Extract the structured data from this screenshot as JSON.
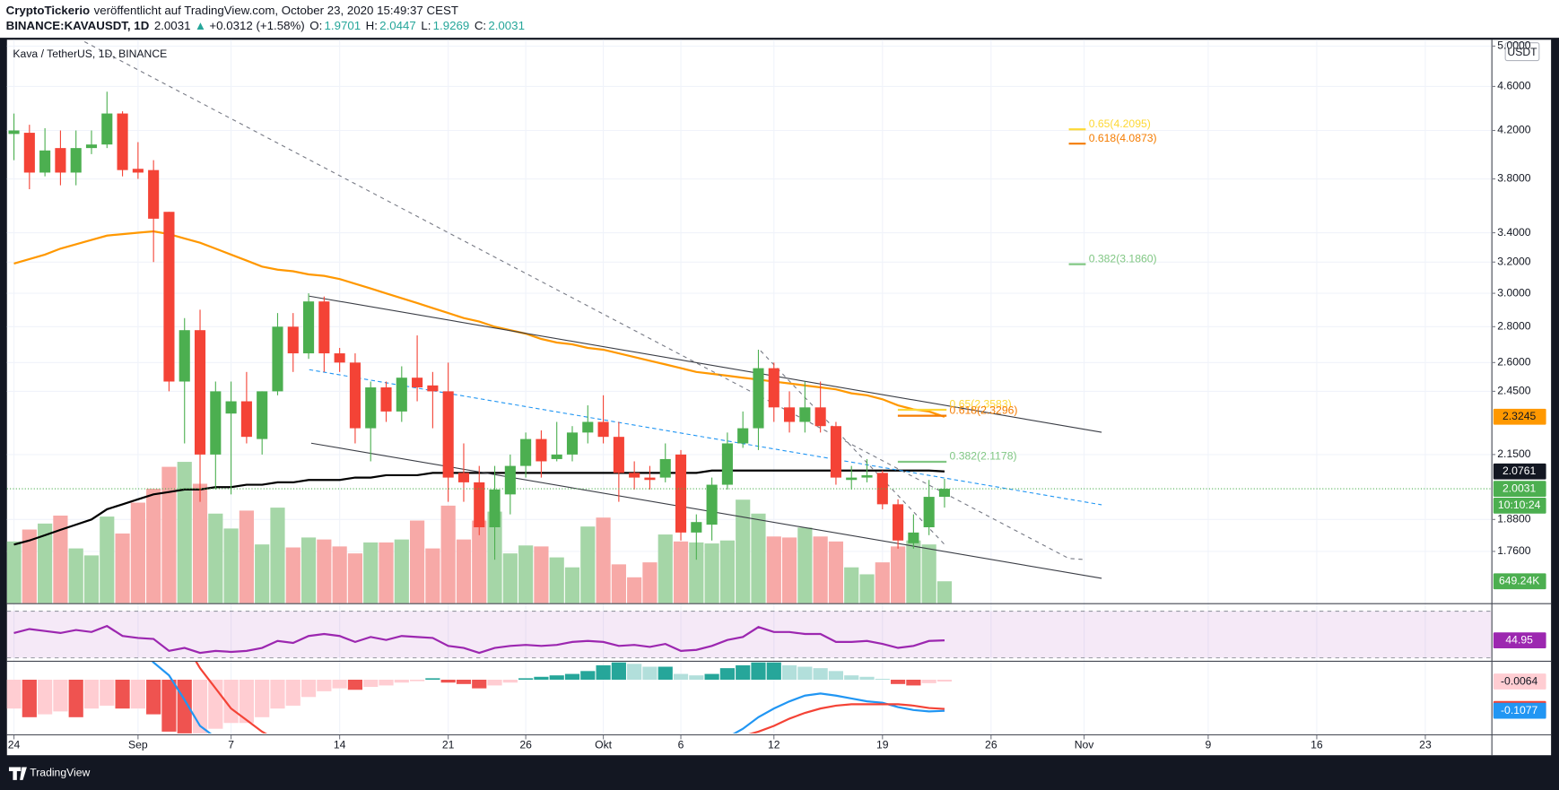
{
  "header": {
    "publisher": "CryptoTickerio",
    "published": "veröffentlicht auf TradingView.com, October 23, 2020 15:49:37 CEST",
    "symbol": "BINANCE:KAVAUSDT, 1D",
    "last": "2.0031",
    "arrow": "▲",
    "change": "+0.0312 (+1.58%)",
    "ohlc": [
      {
        "key": "O:",
        "value": "1.9701"
      },
      {
        "key": "H:",
        "value": "2.0447"
      },
      {
        "key": "L:",
        "value": "1.9269"
      },
      {
        "key": "C:",
        "value": "2.0031"
      }
    ]
  },
  "footer": {
    "brand": "TradingView"
  },
  "chart_data": {
    "type": "candlestick",
    "title": "Kava / TetherUS, 1D, BINANCE",
    "currency": "USDT",
    "log_scale": true,
    "grid": true,
    "grid_color": "#f0f3fa",
    "xlim": [
      0.55,
      96.26
    ],
    "ylim": [
      1.5814,
      5.066
    ],
    "yticks": [
      {
        "value": 5.0,
        "label": "5.0000"
      },
      {
        "value": 4.6,
        "label": "4.6000"
      },
      {
        "value": 4.2,
        "label": "4.2000"
      },
      {
        "value": 3.8,
        "label": "3.8000"
      },
      {
        "value": 3.4,
        "label": "3.4000"
      },
      {
        "value": 3.2,
        "label": "3.2000"
      },
      {
        "value": 3.0,
        "label": "3.0000"
      },
      {
        "value": 2.8,
        "label": "2.8000"
      },
      {
        "value": 2.6,
        "label": "2.6000"
      },
      {
        "value": 2.45,
        "label": "2.4500"
      },
      {
        "value": 2.15,
        "label": "2.1500"
      },
      {
        "value": 1.88,
        "label": "1.8800"
      },
      {
        "value": 1.76,
        "label": "1.7600"
      }
    ],
    "xticks": [
      {
        "value": 1,
        "label": "24"
      },
      {
        "value": 9,
        "label": "Sep"
      },
      {
        "value": 15,
        "label": "7"
      },
      {
        "value": 22,
        "label": "14"
      },
      {
        "value": 29,
        "label": "21"
      },
      {
        "value": 34,
        "label": "26"
      },
      {
        "value": 39,
        "label": "Okt"
      },
      {
        "value": 44,
        "label": "6"
      },
      {
        "value": 50,
        "label": "12"
      },
      {
        "value": 57,
        "label": "19"
      },
      {
        "value": 64,
        "label": "26"
      },
      {
        "value": 70,
        "label": "Nov"
      },
      {
        "value": 78,
        "label": "9"
      },
      {
        "value": 85,
        "label": "16"
      },
      {
        "value": 92,
        "label": "23"
      }
    ],
    "up_color": "#4caf50",
    "down_color": "#f44336",
    "candles": {
      "open": [
        4.17,
        4.18,
        3.85,
        4.05,
        3.85,
        4.05,
        4.08,
        4.35,
        3.88,
        3.87,
        3.55,
        2.5,
        2.78,
        2.15,
        2.34,
        2.4,
        2.22,
        2.45,
        2.8,
        2.65,
        2.95,
        2.65,
        2.6,
        2.27,
        2.47,
        2.35,
        2.52,
        2.48,
        2.45,
        2.07,
        2.03,
        1.85,
        1.98,
        2.1,
        2.22,
        2.13,
        2.15,
        2.25,
        2.3,
        2.23,
        2.07,
        2.05,
        2.05,
        2.15,
        1.83,
        1.86,
        2.02,
        2.2,
        2.27,
        2.57,
        2.37,
        2.3,
        2.37,
        2.28,
        2.04,
        2.05,
        2.07,
        1.94,
        1.79,
        1.85,
        1.9701
      ],
      "high": [
        4.35,
        4.25,
        4.22,
        4.2,
        4.2,
        4.2,
        4.55,
        4.37,
        4.1,
        3.95,
        3.55,
        2.85,
        2.9,
        2.5,
        2.5,
        2.55,
        2.45,
        2.88,
        2.88,
        3.0,
        2.98,
        2.68,
        2.65,
        2.5,
        2.5,
        2.58,
        2.75,
        2.55,
        2.6,
        2.2,
        2.1,
        2.1,
        2.15,
        2.25,
        2.26,
        2.3,
        2.28,
        2.38,
        2.43,
        2.3,
        2.12,
        2.1,
        2.2,
        2.17,
        1.9,
        2.05,
        2.25,
        2.35,
        2.67,
        2.6,
        2.45,
        2.5,
        2.5,
        2.3,
        2.1,
        2.13,
        2.08,
        1.96,
        1.9,
        2.04,
        2.0447
      ],
      "low": [
        3.95,
        3.72,
        3.82,
        3.75,
        3.75,
        4.0,
        4.05,
        3.82,
        3.8,
        3.2,
        2.45,
        2.2,
        1.95,
        2.0,
        1.98,
        2.2,
        2.15,
        2.43,
        2.55,
        2.62,
        2.55,
        2.55,
        2.2,
        2.12,
        2.3,
        2.3,
        2.4,
        2.27,
        1.95,
        1.95,
        1.82,
        1.73,
        1.9,
        2.05,
        2.05,
        2.12,
        2.12,
        2.2,
        2.2,
        1.95,
        2.0,
        2.0,
        2.03,
        1.8,
        1.73,
        1.8,
        2.0,
        2.18,
        2.17,
        2.3,
        2.25,
        2.25,
        2.25,
        2.02,
        2.0,
        2.03,
        1.92,
        1.77,
        1.77,
        1.82,
        1.9269
      ],
      "close": [
        4.2,
        3.85,
        4.03,
        3.85,
        4.05,
        4.08,
        4.35,
        3.87,
        3.85,
        3.5,
        2.5,
        2.78,
        2.15,
        2.45,
        2.4,
        2.23,
        2.45,
        2.8,
        2.65,
        2.95,
        2.65,
        2.6,
        2.27,
        2.47,
        2.35,
        2.52,
        2.47,
        2.45,
        2.05,
        2.03,
        1.85,
        2.0,
        2.1,
        2.22,
        2.12,
        2.15,
        2.25,
        2.3,
        2.23,
        2.07,
        2.05,
        2.04,
        2.13,
        1.83,
        1.87,
        2.02,
        2.2,
        2.27,
        2.57,
        2.37,
        2.3,
        2.37,
        2.28,
        2.05,
        2.05,
        2.06,
        1.94,
        1.8,
        1.83,
        1.97,
        2.0031
      ],
      "volume": [
        1829000,
        2183000,
        2360000,
        2596000,
        1623000,
        1416000,
        2567000,
        2065000,
        2980000,
        3393000,
        4042000,
        4189000,
        3540000,
        2655000,
        2213000,
        2744000,
        1741000,
        2832000,
        1652000,
        1947000,
        1888000,
        1682000,
        1475000,
        1800000,
        1800000,
        1888000,
        2449000,
        1623000,
        2891000,
        1888000,
        2449000,
        2714000,
        1475000,
        1711000,
        1682000,
        1357000,
        1062000,
        2272000,
        2537000,
        1151000,
        767000,
        1210000,
        2036000,
        1829000,
        1800000,
        1770000,
        1859000,
        3068000,
        2655000,
        1977000,
        1947000,
        2242000,
        1977000,
        1829000,
        1062000,
        856000,
        1210000,
        1682000,
        1859000,
        1741000,
        649240
      ]
    },
    "volume_lim": [
      0,
      16700000
    ],
    "volume_up_color": "#a5d6a7",
    "volume_down_color": "#f7a9a7",
    "volume_label": {
      "value": 649240,
      "label": "649.24K",
      "color": "#4caf50"
    },
    "moving_averages": [
      {
        "color": "#ff9800",
        "values": [
          3.19,
          3.22,
          3.25,
          3.29,
          3.32,
          3.35,
          3.38,
          3.39,
          3.4,
          3.41,
          3.39,
          3.36,
          3.33,
          3.29,
          3.25,
          3.21,
          3.17,
          3.15,
          3.14,
          3.12,
          3.11,
          3.09,
          3.06,
          3.03,
          3.0,
          2.97,
          2.94,
          2.91,
          2.88,
          2.85,
          2.83,
          2.8,
          2.78,
          2.76,
          2.73,
          2.71,
          2.7,
          2.68,
          2.67,
          2.65,
          2.63,
          2.61,
          2.59,
          2.57,
          2.55,
          2.54,
          2.53,
          2.52,
          2.51,
          2.5,
          2.49,
          2.48,
          2.47,
          2.46,
          2.44,
          2.43,
          2.41,
          2.38,
          2.36,
          2.35,
          2.3245
        ]
      },
      {
        "color": "#000000",
        "values": [
          1.785,
          1.8,
          1.82,
          1.84,
          1.86,
          1.88,
          1.92,
          1.94,
          1.96,
          1.98,
          1.99,
          2.0,
          2.0,
          2.01,
          2.01,
          2.02,
          2.02,
          2.03,
          2.03,
          2.04,
          2.04,
          2.04,
          2.05,
          2.05,
          2.06,
          2.06,
          2.06,
          2.07,
          2.07,
          2.07,
          2.07,
          2.07,
          2.07,
          2.07,
          2.07,
          2.07,
          2.07,
          2.07,
          2.07,
          2.07,
          2.07,
          2.07,
          2.07,
          2.07,
          2.07,
          2.08,
          2.08,
          2.08,
          2.08,
          2.08,
          2.08,
          2.08,
          2.08,
          2.08,
          2.08,
          2.08,
          2.08,
          2.08,
          2.08,
          2.08,
          2.0761
        ]
      }
    ],
    "price_labels": [
      {
        "value": 2.3245,
        "label": "2.3245",
        "color": "#ff9800",
        "text_color": "#131722"
      },
      {
        "value": 2.0761,
        "label": "2.0761",
        "color": "#131722",
        "text_color": "#ffffff"
      },
      {
        "value": 2.0031,
        "label": "2.0031",
        "color": "#4caf50",
        "text_color": "#ffffff",
        "sublabel": "10:10:24"
      }
    ],
    "fib_groups": [
      [
        {
          "label": "0.65(4.2095)",
          "value": 4.2095,
          "color": "#fdd835"
        },
        {
          "label": "0.618(4.0873)",
          "value": 4.0873,
          "color": "#f57c00"
        },
        {
          "label": "0.382(3.1860)",
          "value": 3.186,
          "color": "#81c784"
        }
      ],
      [
        {
          "label": "0.65(2.3583)",
          "value": 2.3583,
          "color": "#fdd835"
        },
        {
          "label": "0.618(2.3296)",
          "value": 2.3296,
          "color": "#f57c00"
        },
        {
          "label": "0.382(2.1178)",
          "value": 2.1178,
          "color": "#81c784"
        }
      ]
    ],
    "rsi": {
      "color": "#9c27b0",
      "ylim": [
        27.45,
        75.96
      ],
      "bands": [
        30,
        70
      ],
      "values": [
        51.3,
        54.7,
        53.0,
        51.3,
        53.8,
        52.1,
        57.2,
        48.7,
        47.0,
        46.2,
        36.0,
        38.5,
        34.3,
        36.0,
        35.1,
        36.0,
        38.5,
        44.5,
        42.8,
        48.7,
        50.4,
        48.7,
        43.6,
        47.9,
        45.3,
        48.7,
        47.9,
        47.0,
        40.2,
        38.5,
        34.3,
        38.5,
        40.2,
        41.1,
        40.2,
        41.1,
        43.6,
        44.5,
        43.6,
        40.2,
        41.1,
        39.4,
        41.9,
        36.0,
        36.8,
        40.2,
        45.3,
        47.9,
        56.4,
        52.1,
        52.1,
        50.4,
        50.4,
        43.6,
        43.6,
        44.5,
        41.9,
        38.5,
        40.2,
        44.5,
        44.95
      ],
      "label": {
        "value": 44.95,
        "label": "44.95",
        "color": "#9c27b0",
        "text_color": "#ffffff"
      }
    },
    "macd": {
      "ylim": [
        -0.186,
        0.062
      ],
      "macd_color": "#2196f3",
      "signal_color": "#f44336",
      "hist_colors": {
        "up_grow": "#26a69a",
        "up_fall": "#b2dfdb",
        "down_grow": "#ffcdd2",
        "down_fall": "#ef5350"
      },
      "histogram": [
        -0.1,
        -0.13,
        -0.12,
        -0.11,
        -0.13,
        -0.1,
        -0.09,
        -0.1,
        -0.1,
        -0.12,
        -0.18,
        -0.2,
        -0.2,
        -0.17,
        -0.15,
        -0.15,
        -0.13,
        -0.1,
        -0.09,
        -0.06,
        -0.04,
        -0.03,
        -0.035,
        -0.025,
        -0.02,
        -0.01,
        -0.005,
        0.005,
        -0.01,
        -0.015,
        -0.03,
        -0.02,
        -0.01,
        0.005,
        0.01,
        0.015,
        0.02,
        0.03,
        0.05,
        0.06,
        0.055,
        0.045,
        0.045,
        0.02,
        0.015,
        0.02,
        0.04,
        0.05,
        0.06,
        0.06,
        0.05,
        0.045,
        0.04,
        0.03,
        0.015,
        0.01,
        0.003,
        -0.015,
        -0.02,
        -0.012,
        -0.0064
      ],
      "macd": [
        0.3,
        0.28,
        0.26,
        0.24,
        0.22,
        0.21,
        0.21,
        0.19,
        0.12,
        0.06,
        0.015,
        -0.07,
        -0.16,
        -0.2,
        -0.25,
        -0.29,
        -0.31,
        -0.31,
        -0.31,
        -0.29,
        -0.28,
        -0.28,
        -0.29,
        -0.29,
        -0.29,
        -0.28,
        -0.27,
        -0.26,
        -0.27,
        -0.28,
        -0.29,
        -0.28,
        -0.27,
        -0.25,
        -0.24,
        -0.23,
        -0.22,
        -0.21,
        -0.2,
        -0.2,
        -0.2,
        -0.2,
        -0.19,
        -0.2,
        -0.2,
        -0.19,
        -0.2,
        -0.17,
        -0.13,
        -0.1,
        -0.075,
        -0.055,
        -0.048,
        -0.055,
        -0.065,
        -0.075,
        -0.08,
        -0.095,
        -0.105,
        -0.11,
        -0.1077
      ],
      "signal": [
        0.4,
        0.41,
        0.38,
        0.35,
        0.35,
        0.31,
        0.3,
        0.29,
        0.27,
        0.18,
        0.195,
        0.13,
        0.04,
        -0.03,
        -0.1,
        -0.14,
        -0.18,
        -0.21,
        -0.22,
        -0.23,
        -0.24,
        -0.25,
        -0.255,
        -0.265,
        -0.27,
        -0.27,
        -0.265,
        -0.265,
        -0.26,
        -0.265,
        -0.26,
        -0.26,
        -0.26,
        -0.255,
        -0.25,
        -0.245,
        -0.24,
        -0.24,
        -0.25,
        -0.26,
        -0.255,
        -0.245,
        -0.235,
        -0.22,
        -0.215,
        -0.21,
        -0.205,
        -0.195,
        -0.18,
        -0.16,
        -0.135,
        -0.115,
        -0.1,
        -0.09,
        -0.085,
        -0.085,
        -0.085,
        -0.085,
        -0.09,
        -0.098,
        -0.1014
      ],
      "labels": [
        {
          "value": -0.0064,
          "label": "-0.0064",
          "color": "#ffcdd2",
          "text_color": "#131722"
        },
        {
          "value": -0.1014,
          "label": "-0.1014",
          "color": "#f44336",
          "text_color": "#ffffff"
        },
        {
          "value": -0.1077,
          "label": "-0.1077",
          "color": "#2196f3",
          "text_color": "#ffffff"
        }
      ]
    }
  }
}
